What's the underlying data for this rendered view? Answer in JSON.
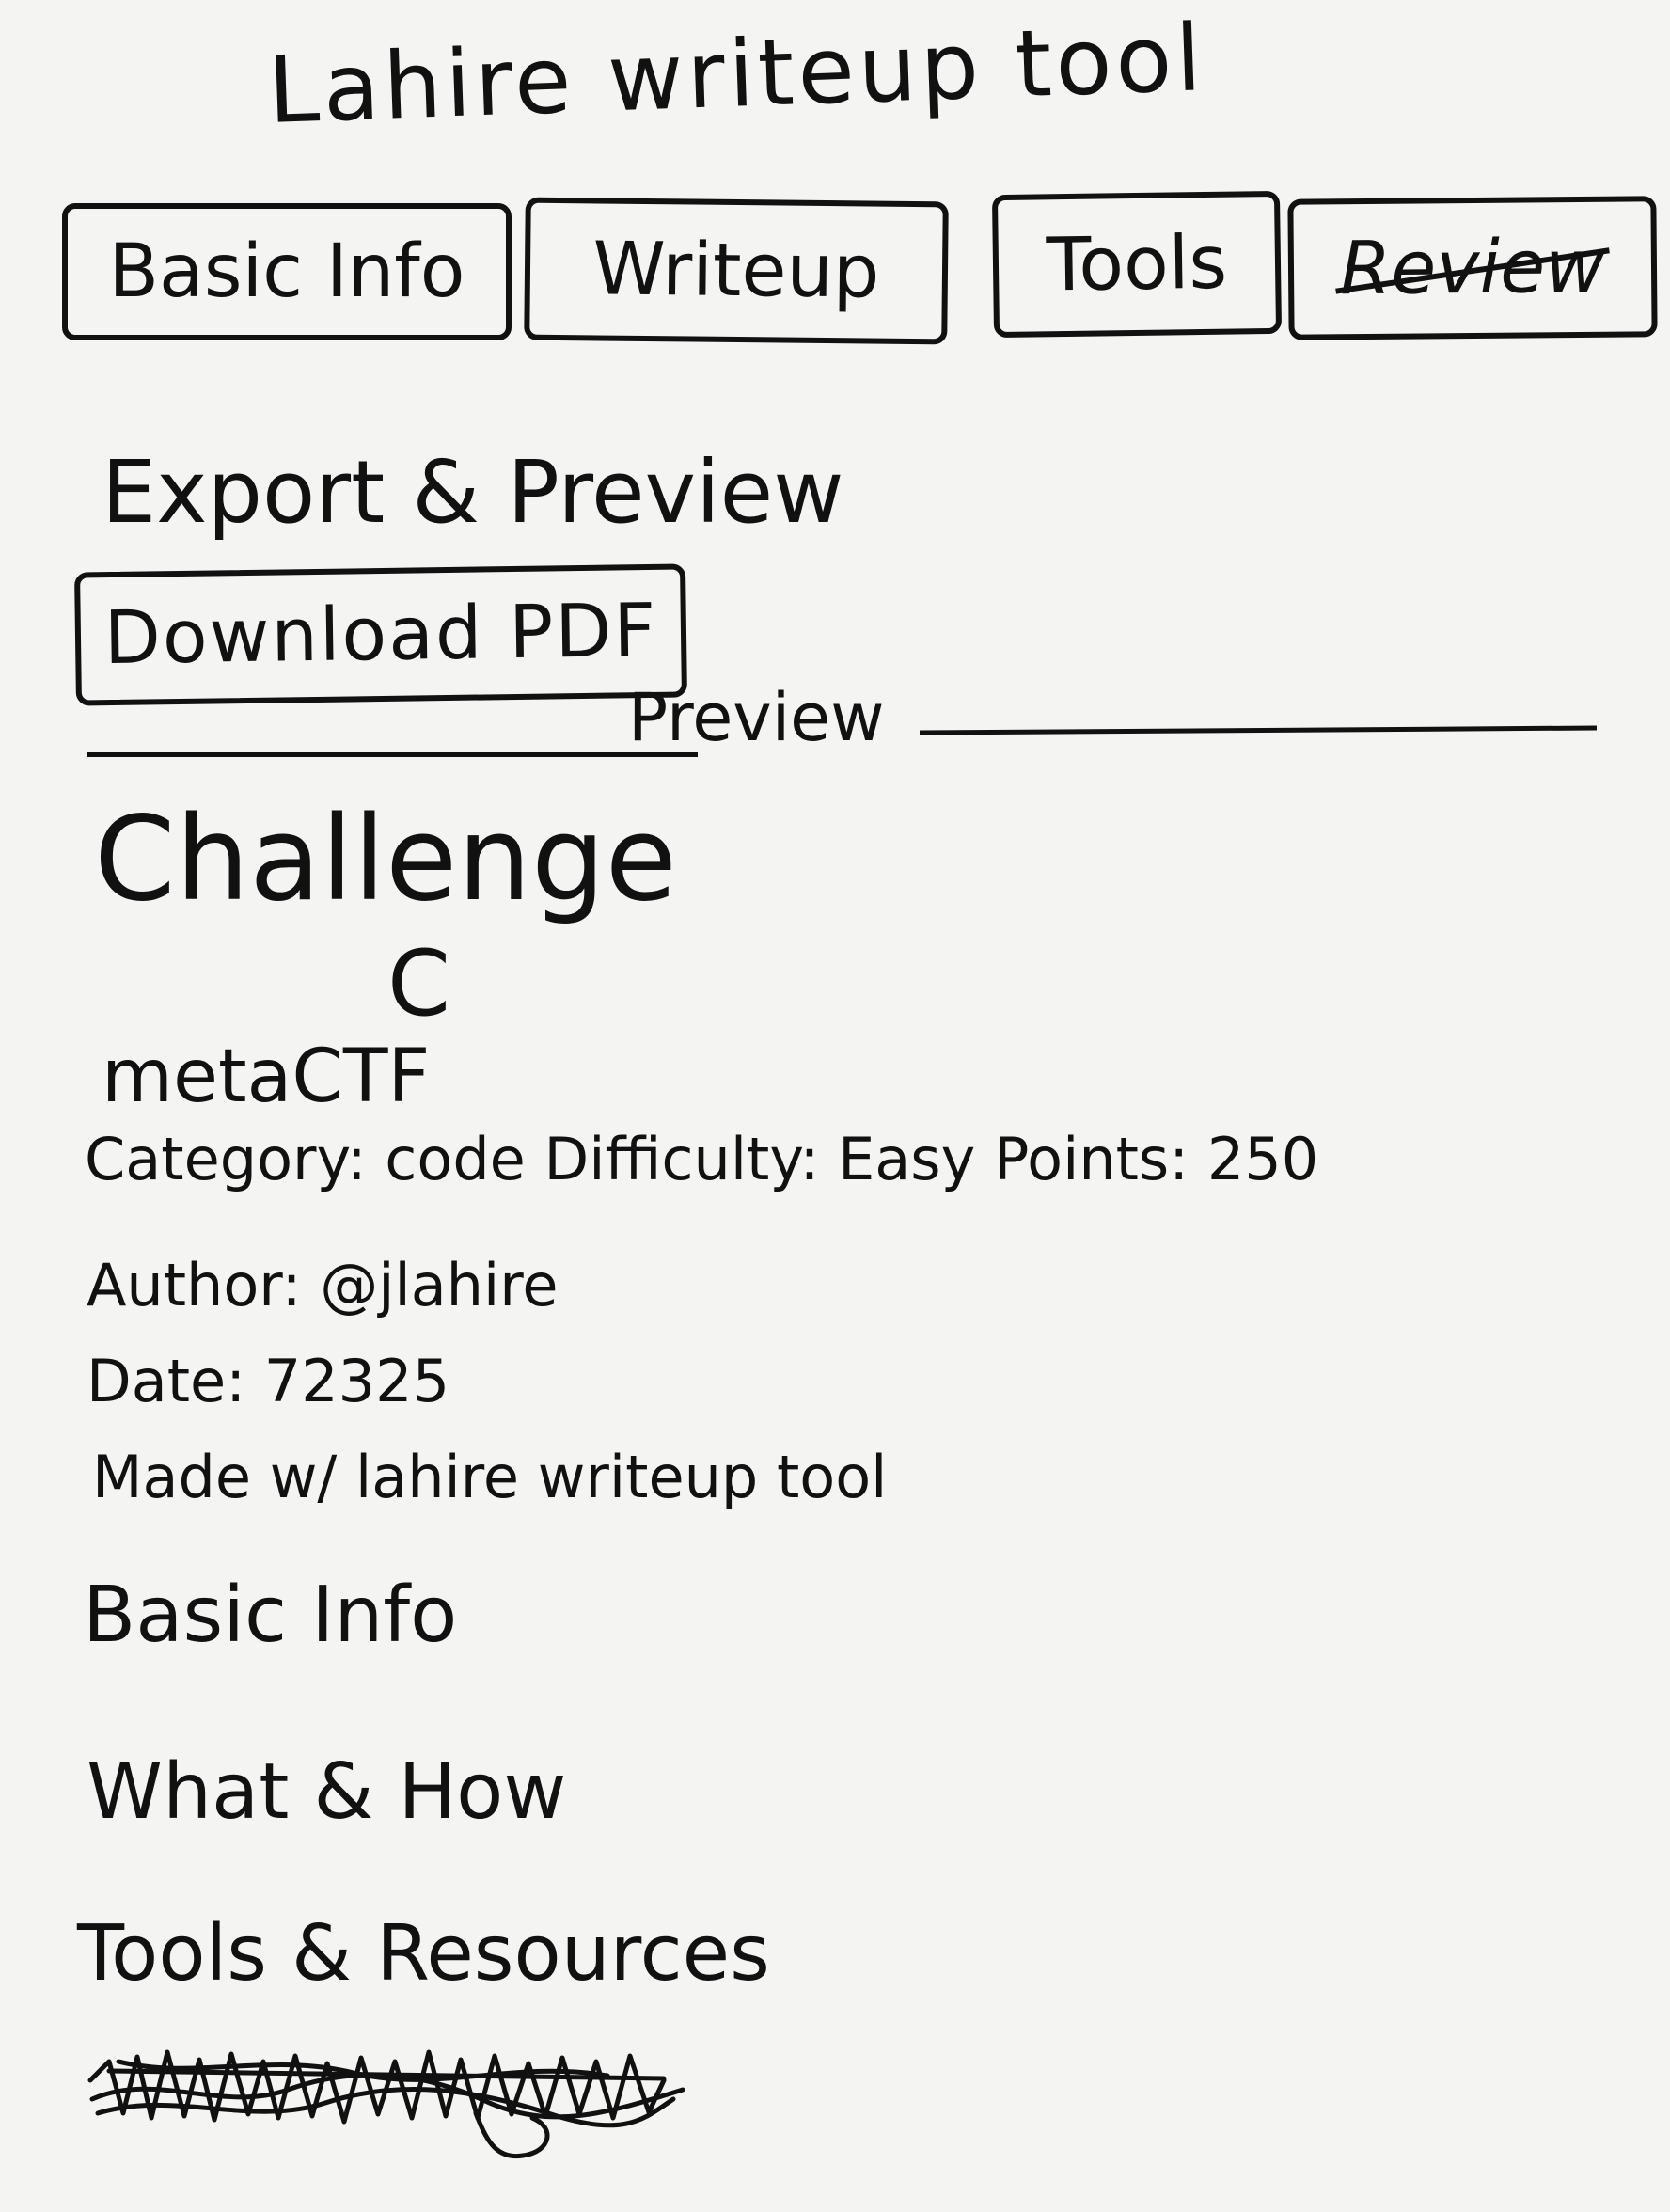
{
  "app": {
    "title": "Lahire writeup tool"
  },
  "tabs": [
    {
      "label": "Basic Info"
    },
    {
      "label": "Writeup"
    },
    {
      "label": "Tools"
    },
    {
      "label": "Review"
    }
  ],
  "export": {
    "title": "Export & Preview",
    "download_label": "Download PDF"
  },
  "preview": {
    "label": "Preview",
    "challenge_title": "Challenge",
    "challenge_sub": "C",
    "ctf_name": "metaCTF",
    "meta": {
      "category_line": "Category: code Difficulty: Easy Points: 250",
      "author_line": "Author: @jlahire",
      "date_line": "Date: 72325",
      "made_with_line": "Made w/ lahire writeup tool"
    },
    "sections": [
      {
        "heading": "Basic Info"
      },
      {
        "heading": "What & How"
      },
      {
        "heading": "Tools & Resources"
      }
    ]
  },
  "icons": {
    "scribble": "scribbled-out-text"
  }
}
